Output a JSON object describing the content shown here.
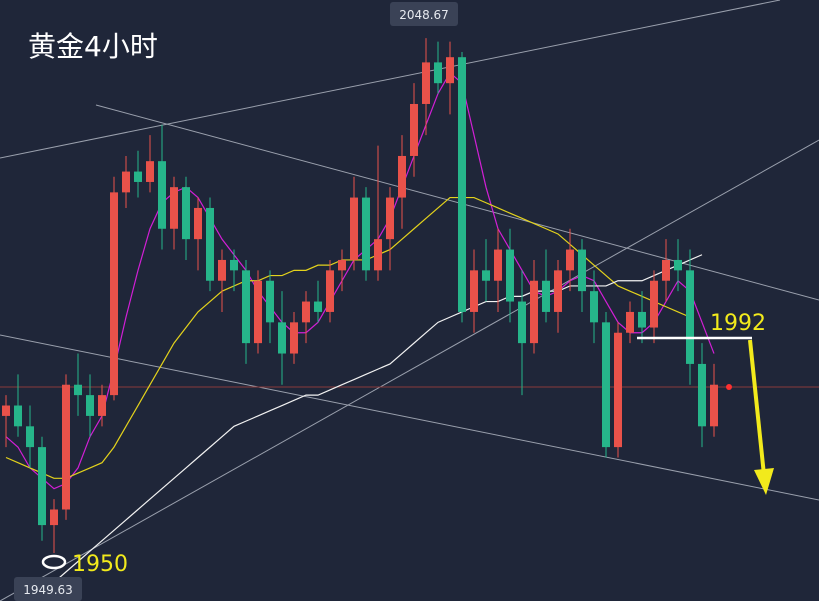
{
  "chart_data": {
    "type": "candlestick",
    "title": "黄金4小时",
    "high_label": "2048.67",
    "low_label": "1949.63",
    "level_labels": [
      "1950",
      "1992"
    ],
    "up_color": "#e9524a",
    "down_color": "#26b58a",
    "ylim": [
      1940.4,
      2056
    ],
    "ohlc": [
      [
        1976,
        1980,
        1970,
        1978
      ],
      [
        1978,
        1984,
        1972,
        1974
      ],
      [
        1974,
        1978,
        1966,
        1970
      ],
      [
        1970,
        1972,
        1952,
        1955
      ],
      [
        1955,
        1960,
        1949.63,
        1958
      ],
      [
        1958,
        1984,
        1956,
        1982
      ],
      [
        1982,
        1988,
        1976,
        1980
      ],
      [
        1980,
        1984,
        1972,
        1976
      ],
      [
        1976,
        1982,
        1974,
        1980
      ],
      [
        1980,
        2022,
        1979,
        2019
      ],
      [
        2019,
        2026,
        2016,
        2023
      ],
      [
        2023,
        2027,
        2018,
        2021
      ],
      [
        2021,
        2030,
        2019,
        2025
      ],
      [
        2025,
        2032,
        2008,
        2012
      ],
      [
        2012,
        2022,
        2008,
        2020
      ],
      [
        2020,
        2022,
        2006,
        2010
      ],
      [
        2010,
        2018,
        2004,
        2016
      ],
      [
        2016,
        2018,
        2000,
        2002
      ],
      [
        2002,
        2008,
        1996,
        2006
      ],
      [
        2006,
        2008,
        2000,
        2004
      ],
      [
        2004,
        2006,
        1986,
        1990
      ],
      [
        1990,
        2004,
        1988,
        2002
      ],
      [
        2002,
        2004,
        1990,
        1994
      ],
      [
        1994,
        2000,
        1982,
        1988
      ],
      [
        1988,
        1996,
        1986,
        1994
      ],
      [
        1994,
        2000,
        1990,
        1998
      ],
      [
        1998,
        2002,
        1994,
        1996
      ],
      [
        1996,
        2006,
        1994,
        2004
      ],
      [
        2004,
        2008,
        2000,
        2006
      ],
      [
        2006,
        2022,
        2004,
        2018
      ],
      [
        2018,
        2020,
        2002,
        2004
      ],
      [
        2004,
        2028,
        2002,
        2010
      ],
      [
        2010,
        2020,
        2004,
        2018
      ],
      [
        2018,
        2030,
        2012,
        2026
      ],
      [
        2026,
        2040,
        2022,
        2036
      ],
      [
        2036,
        2048.67,
        2030,
        2044
      ],
      [
        2044,
        2048,
        2038,
        2040
      ],
      [
        2040,
        2048,
        2034,
        2045
      ],
      [
        2045,
        2046,
        1994,
        1996
      ],
      [
        1996,
        2008,
        1992,
        2004
      ],
      [
        2004,
        2010,
        1998,
        2002
      ],
      [
        2002,
        2012,
        1996,
        2008
      ],
      [
        2008,
        2012,
        1994,
        1998
      ],
      [
        1998,
        2004,
        1980,
        1990
      ],
      [
        1990,
        2006,
        1988,
        2002
      ],
      [
        2002,
        2008,
        1994,
        1996
      ],
      [
        1996,
        2006,
        1992,
        2004
      ],
      [
        2004,
        2012,
        2000,
        2008
      ],
      [
        2008,
        2010,
        1996,
        2000
      ],
      [
        2000,
        2004,
        1990,
        1994
      ],
      [
        1994,
        1996,
        1968,
        1970
      ],
      [
        1970,
        1994,
        1968,
        1992
      ],
      [
        1992,
        1998,
        1990,
        1996
      ],
      [
        1996,
        2000,
        1990,
        1993
      ],
      [
        1993,
        2004,
        1990,
        2002
      ],
      [
        2002,
        2010,
        1998,
        2006
      ],
      [
        2006,
        2010,
        2000,
        2004
      ],
      [
        2004,
        2008,
        1982,
        1986
      ],
      [
        1986,
        1990,
        1970,
        1974
      ],
      [
        1974,
        1986,
        1972,
        1982
      ]
    ],
    "series": [
      {
        "color": "#d21fd6",
        "values": [
          1972,
          1970,
          1966,
          1964,
          1962,
          1963,
          1966,
          1972,
          1976,
          1985,
          1995,
          2004,
          2012,
          2017,
          2019,
          2020,
          2018,
          2014,
          2010,
          2007,
          2004,
          2000,
          1997,
          1994,
          1992,
          1992,
          1994,
          1998,
          2002,
          2006,
          2008,
          2010,
          2014,
          2020,
          2026,
          2032,
          2038,
          2042,
          2040,
          2030,
          2020,
          2012,
          2008,
          2004,
          2000,
          1999,
          2000,
          2002,
          2003,
          2002,
          1998,
          1994,
          1992,
          1992,
          1994,
          1998,
          2002,
          2000,
          1994,
          1988
        ]
      },
      {
        "color": "#e3d21c",
        "values": [
          1968,
          1967,
          1966,
          1965,
          1964,
          1964,
          1965,
          1966,
          1967,
          1970,
          1974,
          1978,
          1982,
          1986,
          1990,
          1993,
          1996,
          1998,
          2000,
          2001,
          2002,
          2002,
          2003,
          2003,
          2004,
          2004,
          2005,
          2005,
          2006,
          2006,
          2006,
          2007,
          2008,
          2010,
          2012,
          2014,
          2016,
          2018,
          2018,
          2018,
          2017,
          2016,
          2015,
          2014,
          2013,
          2012,
          2011,
          2009,
          2007,
          2005,
          2003,
          2001,
          2000,
          1999,
          1998,
          1997,
          1996,
          1995,
          null,
          null
        ]
      },
      {
        "color": "#f2f2f2",
        "values": [
          null,
          null,
          1940,
          1942,
          1944,
          1946,
          1948,
          1950,
          1952,
          1954,
          1956,
          1958,
          1960,
          1962,
          1964,
          1966,
          1968,
          1970,
          1972,
          1974,
          1975,
          1976,
          1977,
          1978,
          1979,
          1980,
          1980,
          1981,
          1982,
          1983,
          1984,
          1985,
          1986,
          1988,
          1990,
          1992,
          1994,
          1995,
          1996,
          1997,
          1998,
          1998,
          1999,
          1999,
          2000,
          2000,
          2000,
          2001,
          2001,
          2001,
          2001,
          2002,
          2002,
          2002,
          2003,
          2004,
          2005,
          2006,
          2007,
          null
        ]
      }
    ]
  }
}
